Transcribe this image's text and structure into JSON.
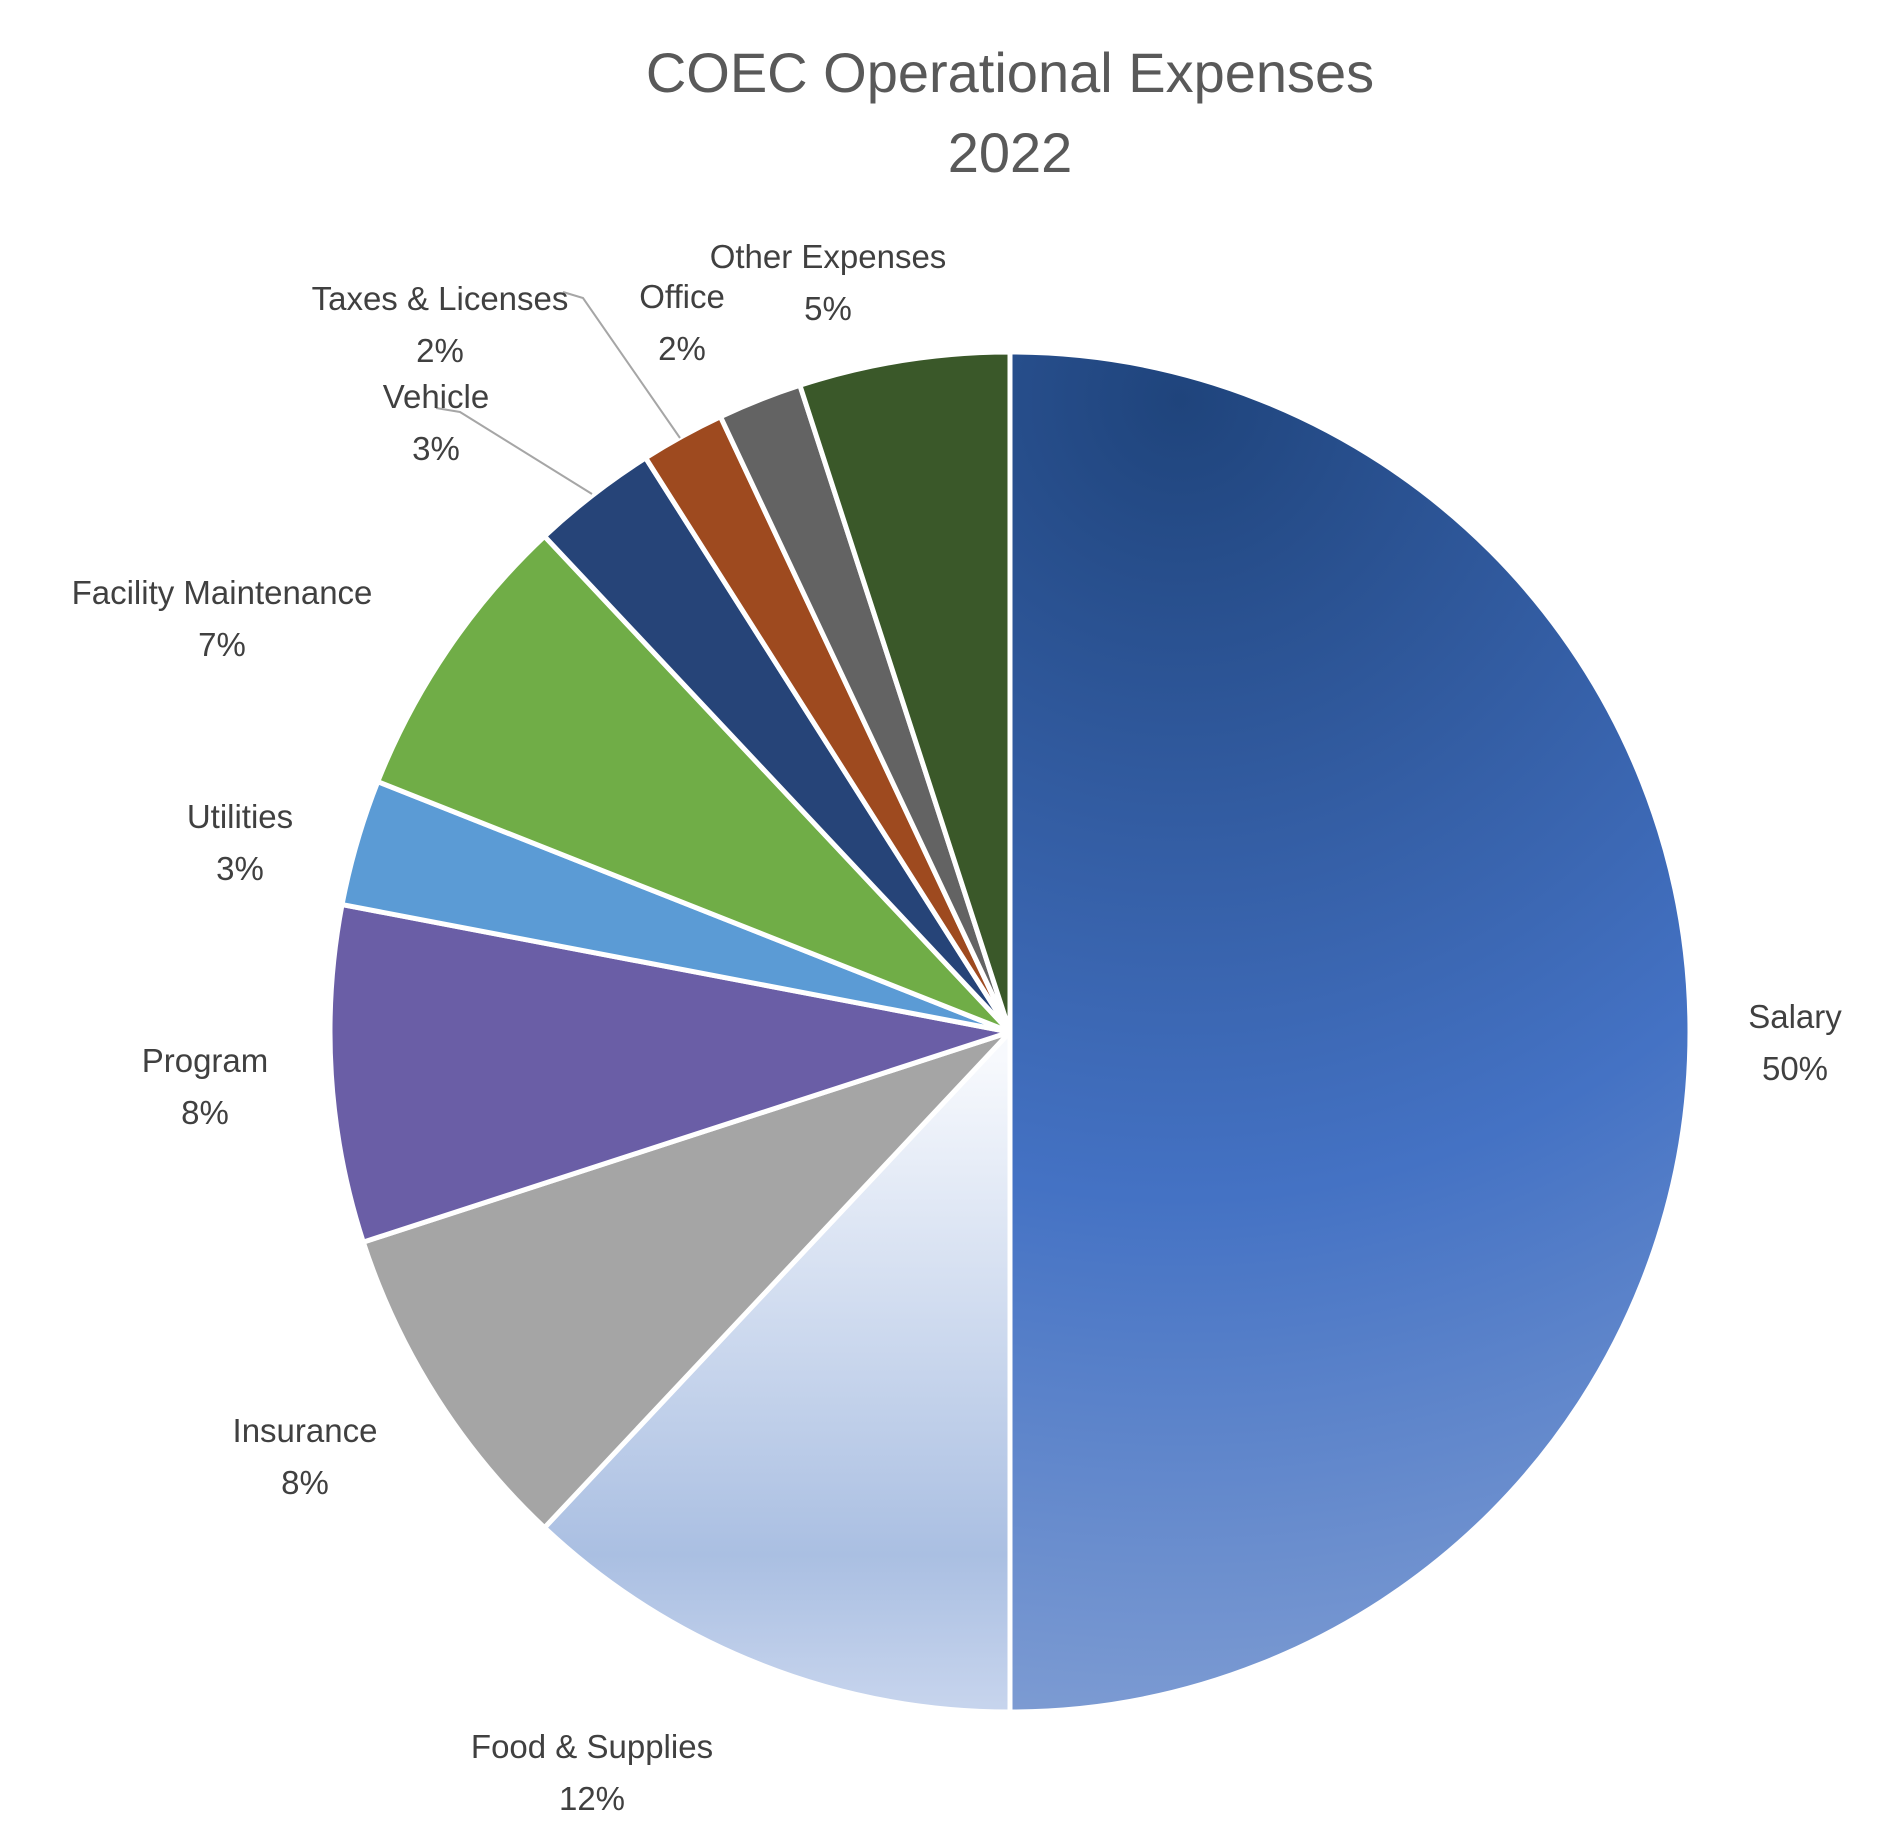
{
  "chart_data": {
    "type": "pie",
    "title": [
      "COEC Operational Expenses",
      "2022"
    ],
    "start_angle_deg": 0,
    "direction": "clockwise",
    "slices": [
      {
        "name": "Salary",
        "value": 50,
        "label": "50%",
        "color": "#3d66b1"
      },
      {
        "name": "Food & Supplies",
        "value": 12,
        "label": "12%",
        "color": "#b4c6e7"
      },
      {
        "name": "Insurance",
        "value": 8,
        "label": "8%",
        "color": "#a5a5a5"
      },
      {
        "name": "Program",
        "value": 8,
        "label": "8%",
        "color": "#6a5ea6"
      },
      {
        "name": "Utilities",
        "value": 3,
        "label": "3%",
        "color": "#5b9bd5"
      },
      {
        "name": "Facility Maintenance",
        "value": 7,
        "label": "7%",
        "color": "#70ad47"
      },
      {
        "name": "Vehicle",
        "value": 3,
        "label": "3%",
        "color": "#264478"
      },
      {
        "name": "Taxes & Licenses",
        "value": 2,
        "label": "2%",
        "color": "#9e4a1f"
      },
      {
        "name": "Office",
        "value": 2,
        "label": "2%",
        "color": "#636363"
      },
      {
        "name": "Other Expenses",
        "value": 5,
        "label": "5%",
        "color": "#3a5829"
      }
    ]
  }
}
